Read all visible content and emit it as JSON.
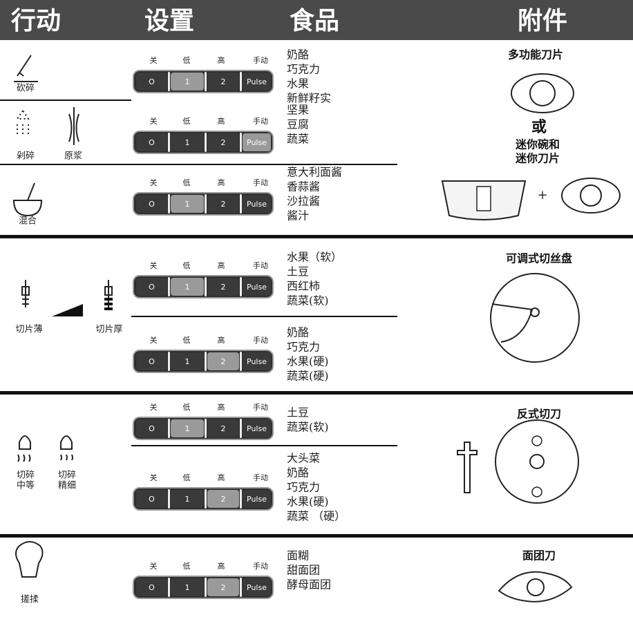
{
  "header": [
    "行动",
    "设置",
    "食品",
    "附件"
  ],
  "control": {
    "labels": [
      "关",
      "低",
      "高",
      "手动"
    ],
    "buttons": [
      "O",
      "1",
      "2",
      "Pulse"
    ]
  },
  "sections": [
    {
      "rows": [
        {
          "actions": [
            [
              "砍碎"
            ]
          ],
          "highlight": 1,
          "foods": [
            "奶酪",
            "巧克力",
            "水果",
            "新鲜籽实"
          ]
        },
        {
          "actions": [
            [
              "剁碎"
            ],
            [
              "原浆"
            ]
          ],
          "highlight": 3,
          "foods": [
            "坚果",
            "豆腐",
            "蔬菜"
          ]
        },
        {
          "actions": [
            [
              "混合"
            ]
          ],
          "highlight": 1,
          "foods": [
            "意大利面酱",
            "香蒜酱",
            "沙拉酱",
            "酱汁"
          ]
        }
      ],
      "accessory": [
        "多功能刀片",
        "或",
        "迷你碗和",
        "迷你刀片",
        "+"
      ]
    },
    {
      "actions": [
        [
          "切片薄"
        ],
        [
          "切片厚"
        ]
      ],
      "rows": [
        {
          "highlight": 1,
          "foods": [
            "水果（软）",
            "土豆",
            "西红柿",
            "蔬菜(软)"
          ]
        },
        {
          "highlight": 2,
          "foods": [
            "奶酪",
            "巧克力",
            "水果(硬)",
            "蔬菜(硬)"
          ]
        }
      ],
      "accessory": [
        "可调式切丝盘"
      ]
    },
    {
      "actions": [
        [
          "切碎",
          "中等"
        ],
        [
          "切碎",
          "精细"
        ]
      ],
      "rows": [
        {
          "highlight": 1,
          "foods": [
            "土豆",
            "蔬菜(软)"
          ]
        },
        {
          "highlight": 2,
          "foods": [
            "大头菜",
            "奶酪",
            "巧克力",
            "水果(硬)",
            "蔬菜 （硬）"
          ]
        }
      ],
      "accessory": [
        "反式切刀"
      ]
    },
    {
      "actions": [
        [
          "搓揉"
        ]
      ],
      "rows": [
        {
          "highlight": 2,
          "foods": [
            "面糊",
            "甜面团",
            "酵母面团"
          ]
        }
      ],
      "accessory": [
        "面团刀"
      ]
    }
  ]
}
